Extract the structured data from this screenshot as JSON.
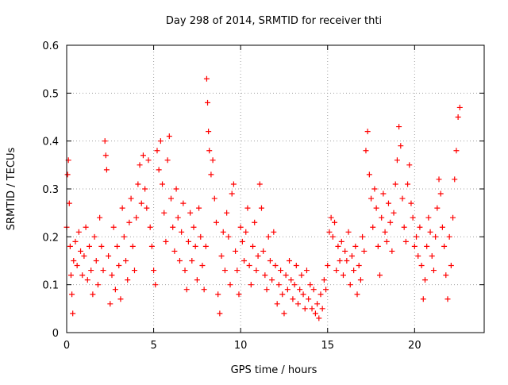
{
  "chart_data": {
    "type": "scatter",
    "title": "Day 298 of 2014, SRMTID for receiver thti",
    "xlabel": "GPS time / hours",
    "ylabel": "SRMTID / TECUs",
    "xlim": [
      0,
      24
    ],
    "ylim": [
      0,
      0.6
    ],
    "xticks": [
      0,
      5,
      10,
      15,
      20
    ],
    "yticks": [
      0,
      0.1,
      0.2,
      0.3,
      0.4,
      0.5,
      0.6
    ],
    "xtick_labels": [
      "0",
      "5",
      "10",
      "15",
      "20"
    ],
    "ytick_labels": [
      "0",
      "0.1",
      "0.2",
      "0.3",
      "0.4",
      "0.5",
      "0.6"
    ],
    "grid": true,
    "marker": "+",
    "series": [
      {
        "name": "SRMTID",
        "color": "#ff0000",
        "x": [
          0.0,
          0.05,
          0.1,
          0.15,
          0.2,
          0.25,
          0.3,
          0.35,
          0.4,
          0.5,
          0.6,
          0.7,
          0.8,
          0.9,
          1.0,
          1.1,
          1.2,
          1.3,
          1.4,
          1.5,
          1.6,
          1.7,
          1.8,
          1.9,
          2.0,
          2.1,
          2.2,
          2.25,
          2.3,
          2.4,
          2.5,
          2.6,
          2.7,
          2.8,
          2.9,
          3.0,
          3.1,
          3.2,
          3.3,
          3.4,
          3.5,
          3.6,
          3.7,
          3.8,
          3.9,
          4.0,
          4.1,
          4.2,
          4.3,
          4.4,
          4.5,
          4.6,
          4.7,
          4.8,
          4.9,
          5.0,
          5.1,
          5.2,
          5.3,
          5.4,
          5.5,
          5.6,
          5.7,
          5.8,
          5.9,
          6.0,
          6.1,
          6.2,
          6.3,
          6.4,
          6.5,
          6.6,
          6.7,
          6.8,
          6.9,
          7.0,
          7.1,
          7.2,
          7.3,
          7.4,
          7.5,
          7.6,
          7.7,
          7.8,
          7.9,
          8.0,
          8.05,
          8.1,
          8.15,
          8.2,
          8.3,
          8.4,
          8.5,
          8.6,
          8.7,
          8.8,
          8.9,
          9.0,
          9.1,
          9.2,
          9.3,
          9.4,
          9.5,
          9.6,
          9.7,
          9.8,
          9.9,
          10.0,
          10.1,
          10.2,
          10.3,
          10.4,
          10.5,
          10.6,
          10.7,
          10.8,
          10.9,
          11.0,
          11.1,
          11.2,
          11.3,
          11.4,
          11.5,
          11.6,
          11.7,
          11.8,
          11.9,
          12.0,
          12.1,
          12.2,
          12.3,
          12.4,
          12.5,
          12.6,
          12.7,
          12.8,
          12.9,
          13.0,
          13.1,
          13.2,
          13.3,
          13.4,
          13.5,
          13.6,
          13.7,
          13.8,
          13.9,
          14.0,
          14.1,
          14.2,
          14.3,
          14.4,
          14.5,
          14.6,
          14.7,
          14.8,
          14.9,
          15.0,
          15.1,
          15.2,
          15.3,
          15.4,
          15.5,
          15.6,
          15.7,
          15.8,
          15.9,
          16.0,
          16.1,
          16.2,
          16.3,
          16.4,
          16.5,
          16.6,
          16.7,
          16.8,
          16.9,
          17.0,
          17.1,
          17.2,
          17.3,
          17.4,
          17.5,
          17.6,
          17.7,
          17.8,
          17.9,
          18.0,
          18.1,
          18.2,
          18.3,
          18.4,
          18.5,
          18.6,
          18.7,
          18.8,
          18.9,
          19.0,
          19.1,
          19.2,
          19.3,
          19.4,
          19.5,
          19.6,
          19.7,
          19.8,
          19.9,
          20.0,
          20.1,
          20.2,
          20.3,
          20.4,
          20.5,
          20.6,
          20.7,
          20.8,
          20.9,
          21.0,
          21.1,
          21.2,
          21.3,
          21.4,
          21.5,
          21.6,
          21.7,
          21.8,
          21.9,
          22.0,
          22.1,
          22.2,
          22.3,
          22.4,
          22.5,
          22.6
        ],
        "y": [
          0.22,
          0.33,
          0.36,
          0.27,
          0.18,
          0.12,
          0.08,
          0.04,
          0.15,
          0.19,
          0.14,
          0.21,
          0.17,
          0.12,
          0.16,
          0.22,
          0.11,
          0.18,
          0.13,
          0.08,
          0.2,
          0.15,
          0.1,
          0.24,
          0.18,
          0.13,
          0.4,
          0.37,
          0.34,
          0.16,
          0.06,
          0.12,
          0.22,
          0.09,
          0.18,
          0.14,
          0.07,
          0.26,
          0.2,
          0.15,
          0.11,
          0.23,
          0.28,
          0.18,
          0.13,
          0.24,
          0.31,
          0.35,
          0.27,
          0.37,
          0.3,
          0.26,
          0.36,
          0.22,
          0.18,
          0.13,
          0.1,
          0.38,
          0.34,
          0.4,
          0.31,
          0.25,
          0.19,
          0.36,
          0.41,
          0.28,
          0.22,
          0.17,
          0.3,
          0.24,
          0.15,
          0.21,
          0.27,
          0.13,
          0.09,
          0.19,
          0.25,
          0.15,
          0.22,
          0.18,
          0.11,
          0.26,
          0.2,
          0.14,
          0.09,
          0.18,
          0.53,
          0.48,
          0.42,
          0.38,
          0.33,
          0.36,
          0.28,
          0.23,
          0.08,
          0.04,
          0.16,
          0.21,
          0.13,
          0.25,
          0.2,
          0.1,
          0.29,
          0.31,
          0.17,
          0.13,
          0.08,
          0.22,
          0.19,
          0.15,
          0.21,
          0.26,
          0.14,
          0.1,
          0.18,
          0.23,
          0.13,
          0.16,
          0.31,
          0.26,
          0.17,
          0.12,
          0.09,
          0.2,
          0.15,
          0.11,
          0.21,
          0.14,
          0.06,
          0.1,
          0.13,
          0.08,
          0.04,
          0.12,
          0.09,
          0.15,
          0.11,
          0.07,
          0.1,
          0.14,
          0.06,
          0.09,
          0.12,
          0.08,
          0.05,
          0.13,
          0.07,
          0.1,
          0.05,
          0.09,
          0.04,
          0.06,
          0.03,
          0.08,
          0.05,
          0.11,
          0.09,
          0.14,
          0.21,
          0.24,
          0.2,
          0.23,
          0.13,
          0.18,
          0.15,
          0.19,
          0.12,
          0.17,
          0.15,
          0.21,
          0.1,
          0.16,
          0.13,
          0.18,
          0.08,
          0.14,
          0.11,
          0.2,
          0.17,
          0.38,
          0.42,
          0.33,
          0.28,
          0.22,
          0.3,
          0.26,
          0.18,
          0.12,
          0.24,
          0.29,
          0.21,
          0.19,
          0.27,
          0.23,
          0.17,
          0.25,
          0.31,
          0.36,
          0.43,
          0.39,
          0.28,
          0.22,
          0.19,
          0.31,
          0.35,
          0.27,
          0.24,
          0.18,
          0.2,
          0.16,
          0.22,
          0.14,
          0.07,
          0.11,
          0.18,
          0.24,
          0.21,
          0.16,
          0.13,
          0.2,
          0.26,
          0.32,
          0.29,
          0.22,
          0.18,
          0.12,
          0.07,
          0.2,
          0.14,
          0.24,
          0.32,
          0.38,
          0.45,
          0.47
        ]
      }
    ]
  }
}
